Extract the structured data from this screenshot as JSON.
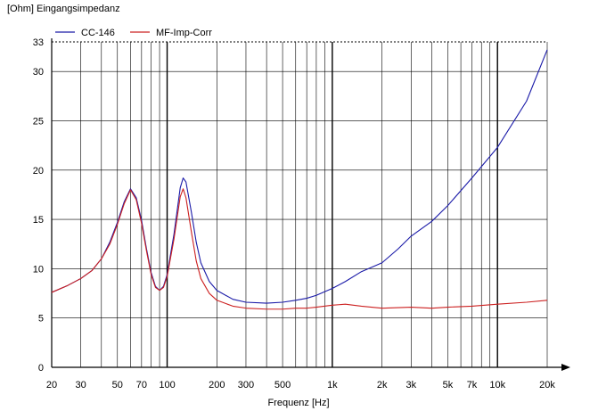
{
  "chart_data": {
    "type": "line",
    "title": "",
    "ylabel": "[Ohm]  Eingangsimpedanz",
    "xlabel": "Frequenz [Hz]",
    "xscale": "log",
    "xlim": [
      20,
      20000
    ],
    "ylim": [
      0,
      33
    ],
    "grid": true,
    "legend_position": "top-left",
    "x_tick_values": [
      20,
      30,
      50,
      70,
      100,
      200,
      300,
      500,
      1000,
      2000,
      3000,
      5000,
      7000,
      10000,
      20000
    ],
    "x_tick_labels": [
      "20",
      "30",
      "50",
      "70",
      "100",
      "200",
      "300",
      "500",
      "1k",
      "2k",
      "3k",
      "5k",
      "7k",
      "10k",
      "20k"
    ],
    "y_tick_values": [
      0,
      5,
      10,
      15,
      20,
      25,
      30,
      33
    ],
    "y_tick_labels": [
      "0",
      "5",
      "10",
      "15",
      "20",
      "25",
      "30",
      "33"
    ],
    "series": [
      {
        "name": "CC-146",
        "color": "#1a1aa8",
        "points": [
          [
            20,
            7.6
          ],
          [
            25,
            8.3
          ],
          [
            30,
            9.0
          ],
          [
            35,
            9.8
          ],
          [
            40,
            11.0
          ],
          [
            45,
            12.7
          ],
          [
            50,
            14.7
          ],
          [
            55,
            16.8
          ],
          [
            60,
            18.1
          ],
          [
            65,
            17.2
          ],
          [
            70,
            14.9
          ],
          [
            75,
            12.0
          ],
          [
            80,
            9.6
          ],
          [
            85,
            8.2
          ],
          [
            90,
            7.8
          ],
          [
            95,
            8.2
          ],
          [
            100,
            9.4
          ],
          [
            110,
            13.5
          ],
          [
            120,
            18.2
          ],
          [
            125,
            19.2
          ],
          [
            130,
            18.8
          ],
          [
            140,
            15.8
          ],
          [
            150,
            12.7
          ],
          [
            160,
            10.6
          ],
          [
            180,
            8.7
          ],
          [
            200,
            7.8
          ],
          [
            250,
            6.9
          ],
          [
            300,
            6.6
          ],
          [
            400,
            6.5
          ],
          [
            500,
            6.6
          ],
          [
            600,
            6.8
          ],
          [
            700,
            7.0
          ],
          [
            800,
            7.3
          ],
          [
            1000,
            8.0
          ],
          [
            1200,
            8.7
          ],
          [
            1500,
            9.7
          ],
          [
            2000,
            10.6
          ],
          [
            2500,
            12.0
          ],
          [
            3000,
            13.3
          ],
          [
            4000,
            14.8
          ],
          [
            5000,
            16.4
          ],
          [
            7000,
            19.2
          ],
          [
            10000,
            22.3
          ],
          [
            15000,
            27.0
          ],
          [
            20000,
            32.2
          ]
        ]
      },
      {
        "name": "MF-Imp-Corr",
        "color": "#cc2020",
        "points": [
          [
            20,
            7.6
          ],
          [
            25,
            8.3
          ],
          [
            30,
            9.0
          ],
          [
            35,
            9.8
          ],
          [
            40,
            11.0
          ],
          [
            45,
            12.5
          ],
          [
            50,
            14.5
          ],
          [
            55,
            16.6
          ],
          [
            60,
            18.0
          ],
          [
            65,
            17.0
          ],
          [
            70,
            14.6
          ],
          [
            75,
            11.8
          ],
          [
            80,
            9.4
          ],
          [
            85,
            8.1
          ],
          [
            90,
            7.8
          ],
          [
            95,
            8.1
          ],
          [
            100,
            9.2
          ],
          [
            110,
            13.0
          ],
          [
            120,
            17.3
          ],
          [
            125,
            18.1
          ],
          [
            130,
            17.2
          ],
          [
            140,
            13.8
          ],
          [
            150,
            10.8
          ],
          [
            160,
            9.0
          ],
          [
            180,
            7.5
          ],
          [
            200,
            6.8
          ],
          [
            250,
            6.2
          ],
          [
            300,
            6.0
          ],
          [
            400,
            5.9
          ],
          [
            500,
            5.9
          ],
          [
            600,
            6.0
          ],
          [
            700,
            6.0
          ],
          [
            800,
            6.1
          ],
          [
            1000,
            6.3
          ],
          [
            1200,
            6.4
          ],
          [
            1500,
            6.2
          ],
          [
            2000,
            6.0
          ],
          [
            3000,
            6.1
          ],
          [
            4000,
            6.0
          ],
          [
            5000,
            6.1
          ],
          [
            7000,
            6.2
          ],
          [
            10000,
            6.4
          ],
          [
            15000,
            6.6
          ],
          [
            20000,
            6.8
          ]
        ]
      }
    ]
  }
}
